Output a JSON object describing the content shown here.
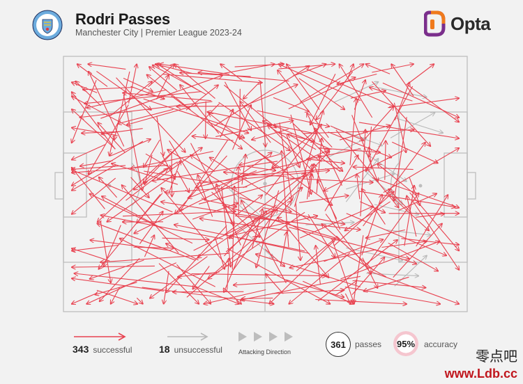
{
  "header": {
    "title": "Rodri Passes",
    "subtitle": "Manchester City | Premier League 2023-24",
    "brand": "Opta",
    "crest_text": "MANCHESTER CITY"
  },
  "legend": {
    "successful_count": "343",
    "successful_label": "successful",
    "unsuccessful_count": "18",
    "unsuccessful_label": "unsuccessful",
    "direction_label": "Attacking Direction",
    "total_passes": "361",
    "passes_label": "passes",
    "accuracy_value": "95%",
    "accuracy_label": "accuracy"
  },
  "watermark": {
    "cn": "零点吧",
    "url": "www.Ldb.cc"
  },
  "colors": {
    "successful": "#e8414f",
    "unsuccessful": "#b8b8b8",
    "pitch_lines": "#bdbdbd",
    "brand_orange": "#f07a1d",
    "brand_purple": "#7b2f8c"
  },
  "chart_data": {
    "type": "scatter",
    "title": "Rodri Passes",
    "subtitle": "Manchester City | Premier League 2023-24",
    "pitch": {
      "length": 100,
      "width": 100,
      "attacking_direction": "right"
    },
    "summary": {
      "successful": 343,
      "unsuccessful": 18,
      "total": 361,
      "accuracy_pct": 95
    },
    "unsuccessful_passes": [
      [
        67,
        18,
        78,
        10
      ],
      [
        82,
        24,
        94,
        30
      ],
      [
        73,
        36,
        85,
        49
      ],
      [
        70,
        75,
        84,
        80
      ],
      [
        82,
        90,
        90,
        78
      ],
      [
        41,
        52,
        50,
        64
      ],
      [
        70,
        57,
        78,
        40
      ],
      [
        75,
        85,
        88,
        86
      ],
      [
        60,
        66,
        72,
        65
      ],
      [
        81,
        32,
        92,
        22
      ],
      [
        70,
        52,
        82,
        46
      ],
      [
        77,
        58,
        88,
        62
      ],
      [
        74,
        44,
        84,
        58
      ],
      [
        65,
        40,
        75,
        32
      ],
      [
        80,
        68,
        91,
        70
      ],
      [
        67,
        28,
        79,
        35
      ],
      [
        77,
        12,
        90,
        16
      ],
      [
        43,
        66,
        52,
        79
      ]
    ]
  }
}
